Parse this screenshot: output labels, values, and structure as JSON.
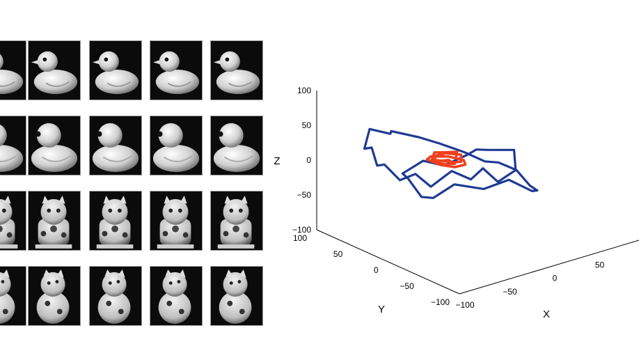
{
  "figure": {
    "thumbnail_grid": {
      "rows": [
        {
          "object": "rubber-duck-side",
          "columns": 5
        },
        {
          "object": "rubber-duck-front",
          "columns": 5
        },
        {
          "object": "lucky-cat-front",
          "columns": 5
        },
        {
          "object": "lucky-cat-angle",
          "columns": 5
        }
      ]
    }
  },
  "chart_data": {
    "type": "line3d",
    "title": "",
    "xlabel": "X",
    "ylabel": "Y",
    "zlabel": "Z",
    "xlim": [
      -100,
      100
    ],
    "ylim": [
      -100,
      100
    ],
    "zlim": [
      -100,
      100
    ],
    "x_ticks": [
      "−100",
      "−50",
      "0",
      "50"
    ],
    "y_ticks": [
      "100",
      "50",
      "0",
      "−50",
      "−100"
    ],
    "z_ticks": [
      "100",
      "50",
      "0",
      "−50",
      "−100"
    ],
    "grid": false,
    "legend": false,
    "series": [
      {
        "color": "#1f3a93",
        "points": [
          [
            35,
            -30,
            8
          ],
          [
            70,
            -20,
            18
          ],
          [
            85,
            10,
            5
          ],
          [
            80,
            45,
            2
          ],
          [
            65,
            50,
            20
          ],
          [
            60,
            70,
            12
          ],
          [
            40,
            75,
            22
          ],
          [
            25,
            95,
            6
          ],
          [
            5,
            90,
            18
          ],
          [
            -15,
            85,
            4
          ],
          [
            -35,
            80,
            20
          ],
          [
            -50,
            65,
            10
          ],
          [
            -65,
            45,
            24
          ],
          [
            -80,
            30,
            14
          ],
          [
            -85,
            5,
            30
          ],
          [
            -70,
            -15,
            18
          ],
          [
            -80,
            -40,
            10
          ],
          [
            -55,
            -55,
            0
          ],
          [
            -40,
            -75,
            -14
          ],
          [
            -15,
            -85,
            -26
          ],
          [
            10,
            -80,
            -32
          ],
          [
            30,
            -70,
            -26
          ],
          [
            55,
            -60,
            -28
          ],
          [
            75,
            -50,
            -42
          ],
          [
            90,
            -35,
            -40
          ],
          [
            95,
            -10,
            -30
          ],
          [
            75,
            5,
            -12
          ],
          [
            55,
            25,
            -20
          ],
          [
            30,
            45,
            -10
          ],
          [
            10,
            55,
            -28
          ],
          [
            -10,
            40,
            -36
          ],
          [
            -30,
            30,
            -18
          ],
          [
            -45,
            10,
            -22
          ],
          [
            -30,
            -10,
            -10
          ],
          [
            -15,
            -30,
            -22
          ],
          [
            5,
            -45,
            -10
          ],
          [
            20,
            -35,
            4
          ],
          [
            35,
            -30,
            8
          ]
        ]
      },
      {
        "color": "#f04020",
        "points": [
          [
            12,
            0,
            5
          ],
          [
            8,
            -12,
            8
          ],
          [
            -5,
            -15,
            4
          ],
          [
            -15,
            -5,
            6
          ],
          [
            -12,
            8,
            2
          ],
          [
            0,
            14,
            5
          ],
          [
            12,
            10,
            3
          ],
          [
            18,
            0,
            1
          ],
          [
            10,
            -18,
            2
          ],
          [
            -8,
            -20,
            0
          ],
          [
            -20,
            -6,
            -1
          ],
          [
            -16,
            12,
            3
          ],
          [
            2,
            18,
            1
          ],
          [
            16,
            12,
            -2
          ],
          [
            22,
            -2,
            -3
          ],
          [
            14,
            -16,
            -4
          ],
          [
            -4,
            -16,
            -2
          ],
          [
            -14,
            -4,
            1
          ],
          [
            -8,
            8,
            -1
          ],
          [
            6,
            8,
            -2
          ],
          [
            10,
            -2,
            -4
          ],
          [
            0,
            -8,
            -3
          ],
          [
            -6,
            0,
            -2
          ]
        ]
      }
    ]
  }
}
